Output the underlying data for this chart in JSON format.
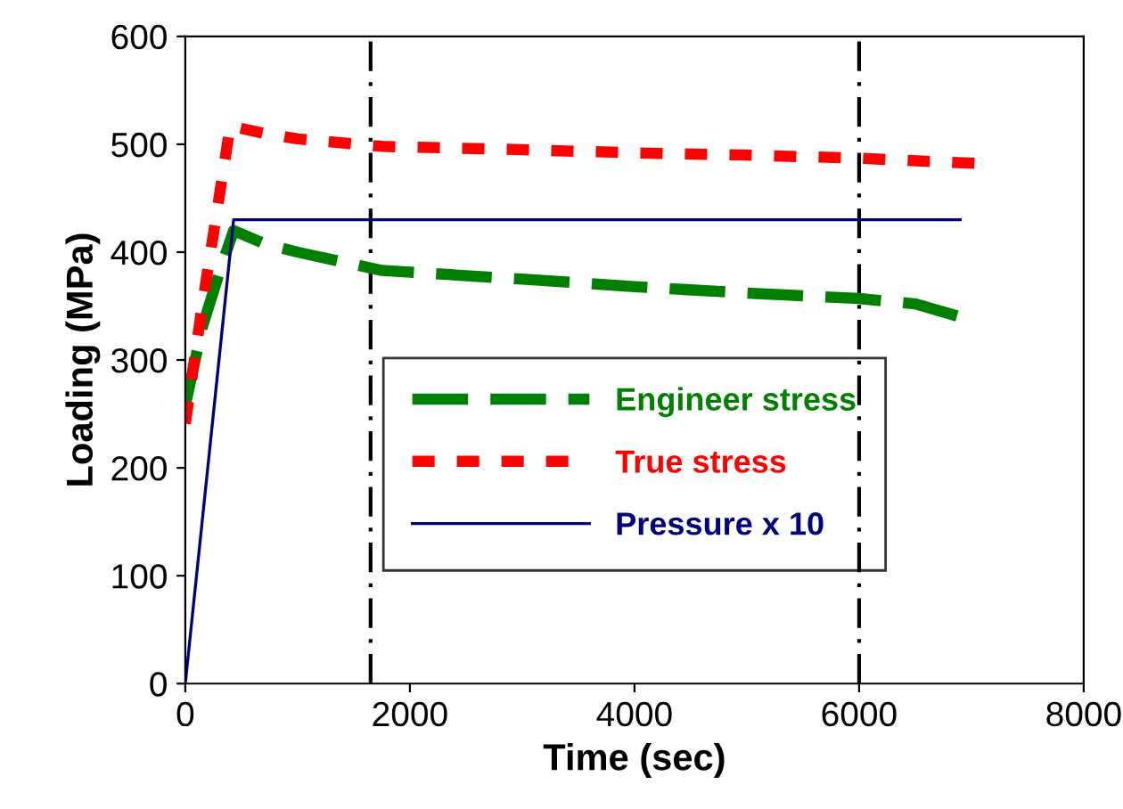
{
  "chart_data": {
    "type": "line",
    "xlabel": "Time (sec)",
    "ylabel": "Loading (MPa)",
    "xlim": [
      0,
      8000
    ],
    "xticks": [
      0,
      2000,
      4000,
      6000,
      8000
    ],
    "ylim": [
      0,
      600
    ],
    "yticks": [
      0,
      100,
      200,
      300,
      400,
      500,
      600
    ],
    "grid": false,
    "legend": "bottom",
    "marker": "none",
    "series": [
      {
        "name": "Engineer stress",
        "color": "#008000",
        "line_style": "dashed",
        "x": [
          0,
          150,
          300,
          430,
          700,
          1000,
          1750,
          3000,
          4000,
          5000,
          6000,
          6500,
          6900
        ],
        "values": [
          258,
          330,
          380,
          420,
          408,
          400,
          383,
          375,
          368,
          362,
          357,
          352,
          340
        ]
      },
      {
        "name": "True stress",
        "color": "#ff0000",
        "line_style": "dotted",
        "x": [
          0,
          150,
          300,
          400,
          700,
          1000,
          1750,
          3000,
          4000,
          5000,
          6000,
          7100
        ],
        "values": [
          241,
          350,
          450,
          517,
          510,
          505,
          498,
          495,
          492,
          490,
          487,
          482
        ]
      },
      {
        "name": "Pressure x 10",
        "color": "#000080",
        "line_style": "solid",
        "x": [
          0,
          430,
          6900
        ],
        "values": [
          0,
          430,
          430
        ]
      }
    ],
    "ref_lines": [
      {
        "axis": "x",
        "value": 1650,
        "color": "#000000",
        "line_style": "dashdot"
      },
      {
        "axis": "x",
        "value": 6000,
        "color": "#000000",
        "line_style": "dashdot"
      }
    ]
  }
}
